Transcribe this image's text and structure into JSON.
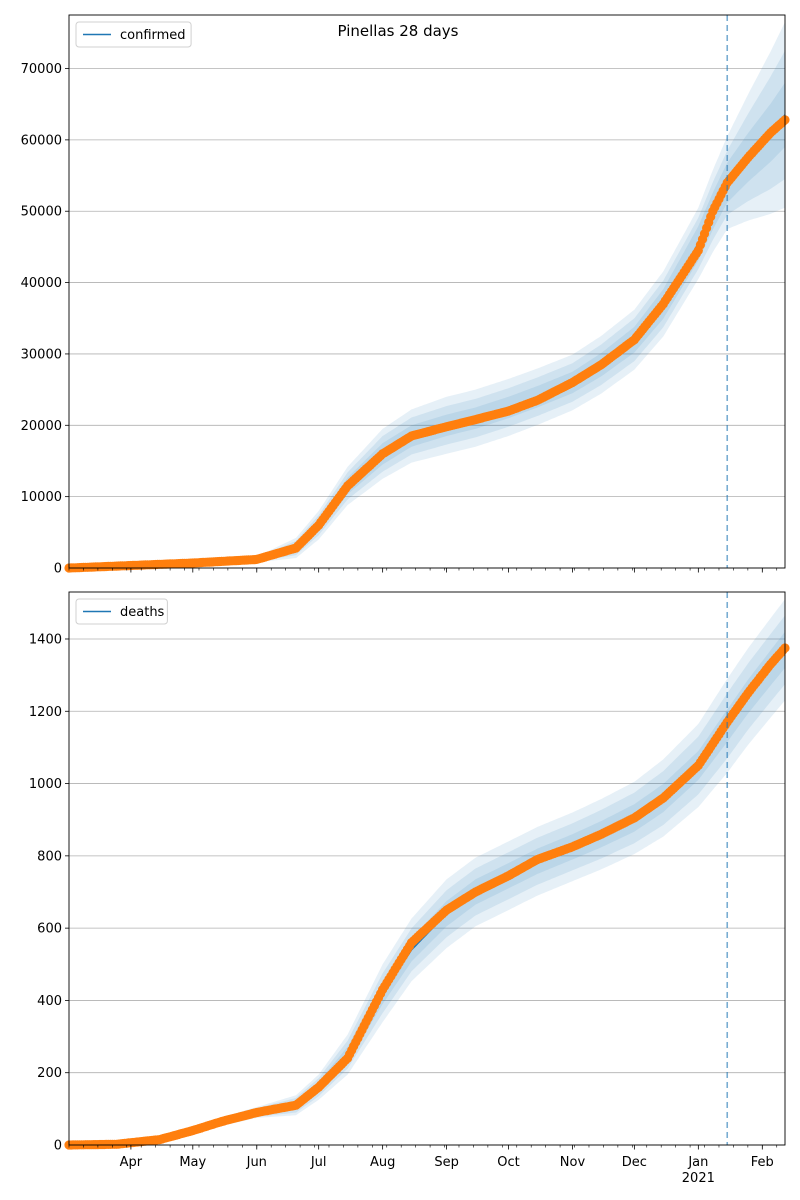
{
  "figure": {
    "title": "Pinellas 28 days"
  },
  "colors": {
    "model_line": "#1f77b4",
    "observed": "#ff7f0e",
    "band": "#1f77b4",
    "vline": "#1f77b4",
    "grid": "#b0b0b0"
  },
  "x_axis": {
    "start_date": "2020-03-02",
    "end_date": "2021-02-12",
    "month_ticks": [
      {
        "date": "2020-04-01",
        "label": "Apr",
        "sublabel": ""
      },
      {
        "date": "2020-05-01",
        "label": "May",
        "sublabel": ""
      },
      {
        "date": "2020-06-01",
        "label": "Jun",
        "sublabel": ""
      },
      {
        "date": "2020-07-01",
        "label": "Jul",
        "sublabel": ""
      },
      {
        "date": "2020-08-01",
        "label": "Aug",
        "sublabel": ""
      },
      {
        "date": "2020-09-01",
        "label": "Sep",
        "sublabel": ""
      },
      {
        "date": "2020-10-01",
        "label": "Oct",
        "sublabel": ""
      },
      {
        "date": "2020-11-01",
        "label": "Nov",
        "sublabel": ""
      },
      {
        "date": "2020-12-01",
        "label": "Dec",
        "sublabel": ""
      },
      {
        "date": "2021-01-01",
        "label": "Jan",
        "sublabel": "2021"
      },
      {
        "date": "2021-02-01",
        "label": "Feb",
        "sublabel": ""
      }
    ],
    "forecast_start": "2021-01-15"
  },
  "chart_data": [
    {
      "type": "line",
      "title": "Pinellas 28 days",
      "legend": {
        "placement": "top-left",
        "entries": [
          "confirmed"
        ]
      },
      "series": [
        {
          "name": "confirmed"
        }
      ],
      "grid": true,
      "ylim": [
        0,
        77500
      ],
      "yticks": [
        0,
        10000,
        20000,
        30000,
        40000,
        50000,
        60000,
        70000
      ],
      "model_points": [
        {
          "date": "2020-03-02",
          "y": 0
        },
        {
          "date": "2020-04-01",
          "y": 350
        },
        {
          "date": "2020-05-01",
          "y": 700
        },
        {
          "date": "2020-06-01",
          "y": 1200
        },
        {
          "date": "2020-06-20",
          "y": 2800
        },
        {
          "date": "2020-07-01",
          "y": 6000
        },
        {
          "date": "2020-07-15",
          "y": 11500
        },
        {
          "date": "2020-08-01",
          "y": 16000
        },
        {
          "date": "2020-08-15",
          "y": 18500
        },
        {
          "date": "2020-09-01",
          "y": 20000
        },
        {
          "date": "2020-09-15",
          "y": 21000
        },
        {
          "date": "2020-10-01",
          "y": 22500
        },
        {
          "date": "2020-10-15",
          "y": 24000
        },
        {
          "date": "2020-11-01",
          "y": 26000
        },
        {
          "date": "2020-11-15",
          "y": 28500
        },
        {
          "date": "2020-12-01",
          "y": 32000
        },
        {
          "date": "2020-12-15",
          "y": 37000
        },
        {
          "date": "2021-01-01",
          "y": 45500
        },
        {
          "date": "2021-01-08",
          "y": 50000
        },
        {
          "date": "2021-01-15",
          "y": 54000
        },
        {
          "date": "2021-01-25",
          "y": 57500
        },
        {
          "date": "2021-02-05",
          "y": 61000
        },
        {
          "date": "2021-02-12",
          "y": 63500
        }
      ],
      "observed_points": [
        {
          "date": "2020-03-02",
          "y": 0
        },
        {
          "date": "2020-04-01",
          "y": 350
        },
        {
          "date": "2020-05-01",
          "y": 700
        },
        {
          "date": "2020-06-01",
          "y": 1200
        },
        {
          "date": "2020-06-20",
          "y": 2800
        },
        {
          "date": "2020-07-01",
          "y": 6000
        },
        {
          "date": "2020-07-15",
          "y": 11500
        },
        {
          "date": "2020-08-01",
          "y": 16000
        },
        {
          "date": "2020-08-15",
          "y": 18500
        },
        {
          "date": "2020-09-01",
          "y": 19800
        },
        {
          "date": "2020-09-15",
          "y": 20800
        },
        {
          "date": "2020-10-01",
          "y": 22000
        },
        {
          "date": "2020-10-15",
          "y": 23500
        },
        {
          "date": "2020-11-01",
          "y": 26000
        },
        {
          "date": "2020-11-15",
          "y": 28500
        },
        {
          "date": "2020-12-01",
          "y": 32000
        },
        {
          "date": "2020-12-15",
          "y": 37000
        },
        {
          "date": "2021-01-01",
          "y": 44500
        },
        {
          "date": "2021-01-08",
          "y": 50000
        },
        {
          "date": "2021-01-15",
          "y": 54000
        },
        {
          "date": "2021-01-25",
          "y": 57500
        },
        {
          "date": "2021-02-05",
          "y": 61000
        },
        {
          "date": "2021-02-12",
          "y": 62800
        }
      ],
      "band_half_widths": [
        {
          "date": "2020-03-02",
          "w": [
            0,
            0,
            0
          ]
        },
        {
          "date": "2020-06-01",
          "w": [
            200,
            300,
            400
          ]
        },
        {
          "date": "2020-07-01",
          "w": [
            900,
            1400,
            2000
          ]
        },
        {
          "date": "2020-08-01",
          "w": [
            1500,
            2500,
            3500
          ]
        },
        {
          "date": "2020-09-01",
          "w": [
            1500,
            2700,
            4000
          ]
        },
        {
          "date": "2020-10-01",
          "w": [
            1500,
            2700,
            4000
          ]
        },
        {
          "date": "2020-11-01",
          "w": [
            1500,
            2700,
            3900
          ]
        },
        {
          "date": "2020-12-01",
          "w": [
            1800,
            3000,
            4200
          ]
        },
        {
          "date": "2021-01-01",
          "w": [
            2400,
            3600,
            5000
          ]
        },
        {
          "date": "2021-01-15",
          "w": [
            2800,
            4500,
            6500
          ]
        },
        {
          "date": "2021-02-12",
          "w": [
            4500,
            9000,
            13000
          ]
        }
      ]
    },
    {
      "type": "line",
      "title": "",
      "legend": {
        "placement": "top-left",
        "entries": [
          "deaths"
        ]
      },
      "series": [
        {
          "name": "deaths"
        }
      ],
      "grid": true,
      "ylim": [
        0,
        1530
      ],
      "yticks": [
        0,
        200,
        400,
        600,
        800,
        1000,
        1200,
        1400
      ],
      "model_points": [
        {
          "date": "2020-03-02",
          "y": 0
        },
        {
          "date": "2020-03-25",
          "y": 2
        },
        {
          "date": "2020-04-15",
          "y": 15
        },
        {
          "date": "2020-05-01",
          "y": 40
        },
        {
          "date": "2020-05-15",
          "y": 65
        },
        {
          "date": "2020-06-01",
          "y": 90
        },
        {
          "date": "2020-06-20",
          "y": 110
        },
        {
          "date": "2020-07-01",
          "y": 160
        },
        {
          "date": "2020-07-15",
          "y": 250
        },
        {
          "date": "2020-08-01",
          "y": 420
        },
        {
          "date": "2020-08-15",
          "y": 540
        },
        {
          "date": "2020-09-01",
          "y": 640
        },
        {
          "date": "2020-09-15",
          "y": 700
        },
        {
          "date": "2020-10-01",
          "y": 745
        },
        {
          "date": "2020-10-15",
          "y": 785
        },
        {
          "date": "2020-11-01",
          "y": 825
        },
        {
          "date": "2020-11-15",
          "y": 860
        },
        {
          "date": "2020-12-01",
          "y": 905
        },
        {
          "date": "2020-12-15",
          "y": 960
        },
        {
          "date": "2021-01-01",
          "y": 1050
        },
        {
          "date": "2021-01-15",
          "y": 1160
        },
        {
          "date": "2021-01-25",
          "y": 1240
        },
        {
          "date": "2021-02-05",
          "y": 1320
        },
        {
          "date": "2021-02-12",
          "y": 1370
        }
      ],
      "observed_points": [
        {
          "date": "2020-03-02",
          "y": 0
        },
        {
          "date": "2020-03-25",
          "y": 2
        },
        {
          "date": "2020-04-15",
          "y": 15
        },
        {
          "date": "2020-05-01",
          "y": 40
        },
        {
          "date": "2020-05-15",
          "y": 65
        },
        {
          "date": "2020-06-01",
          "y": 90
        },
        {
          "date": "2020-06-20",
          "y": 110
        },
        {
          "date": "2020-07-01",
          "y": 160
        },
        {
          "date": "2020-07-15",
          "y": 240
        },
        {
          "date": "2020-08-01",
          "y": 430
        },
        {
          "date": "2020-08-15",
          "y": 560
        },
        {
          "date": "2020-09-01",
          "y": 650
        },
        {
          "date": "2020-09-15",
          "y": 700
        },
        {
          "date": "2020-10-01",
          "y": 745
        },
        {
          "date": "2020-10-15",
          "y": 790
        },
        {
          "date": "2020-11-01",
          "y": 825
        },
        {
          "date": "2020-11-15",
          "y": 860
        },
        {
          "date": "2020-12-01",
          "y": 905
        },
        {
          "date": "2020-12-15",
          "y": 960
        },
        {
          "date": "2021-01-01",
          "y": 1050
        },
        {
          "date": "2021-01-15",
          "y": 1170
        },
        {
          "date": "2021-01-25",
          "y": 1250
        },
        {
          "date": "2021-02-05",
          "y": 1330
        },
        {
          "date": "2021-02-12",
          "y": 1375
        }
      ],
      "band_half_widths": [
        {
          "date": "2020-03-02",
          "w": [
            0,
            0,
            0
          ]
        },
        {
          "date": "2020-06-01",
          "w": [
            8,
            12,
            15
          ]
        },
        {
          "date": "2020-07-01",
          "w": [
            15,
            25,
            35
          ]
        },
        {
          "date": "2020-08-01",
          "w": [
            30,
            55,
            80
          ]
        },
        {
          "date": "2020-09-01",
          "w": [
            35,
            65,
            95
          ]
        },
        {
          "date": "2020-10-01",
          "w": [
            35,
            65,
            95
          ]
        },
        {
          "date": "2020-11-01",
          "w": [
            35,
            65,
            95
          ]
        },
        {
          "date": "2020-12-01",
          "w": [
            38,
            70,
            100
          ]
        },
        {
          "date": "2021-01-01",
          "w": [
            40,
            80,
            115
          ]
        },
        {
          "date": "2021-01-15",
          "w": [
            45,
            90,
            130
          ]
        },
        {
          "date": "2021-02-12",
          "w": [
            50,
            95,
            140
          ]
        }
      ]
    }
  ]
}
